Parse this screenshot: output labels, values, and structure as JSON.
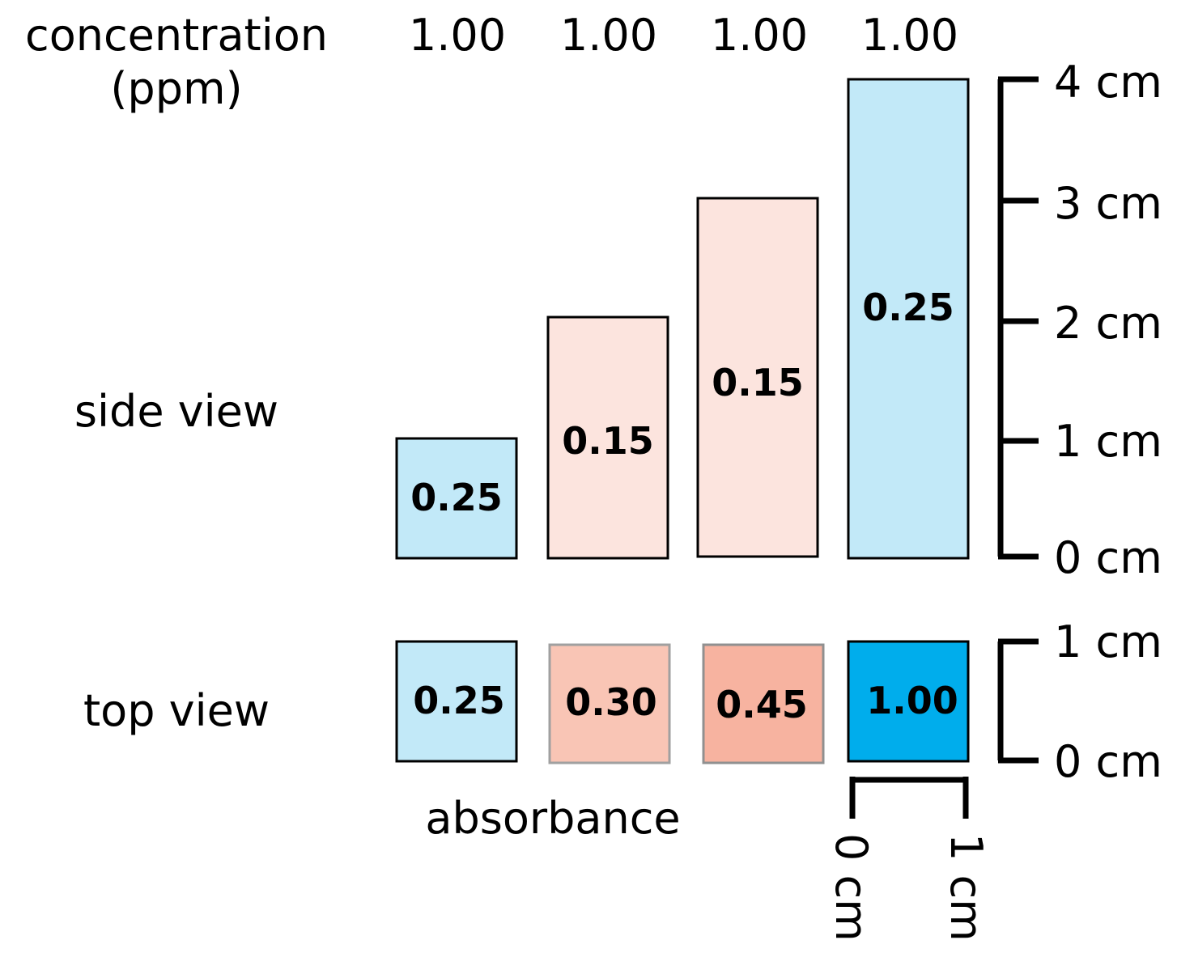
{
  "labels": {
    "concentration_line1": "concentration",
    "concentration_line2": "(ppm)",
    "side_view": "side view",
    "top_view": "top view",
    "absorbance": "absorbance"
  },
  "concentrations": [
    "1.00",
    "1.00",
    "1.00",
    "1.00"
  ],
  "side_view": {
    "heights_cm": [
      1,
      2,
      3,
      4
    ],
    "values": [
      "0.25",
      "0.15",
      "0.15",
      "0.25"
    ],
    "fills": [
      "#c2e9f8",
      "#fce4de",
      "#fce4de",
      "#c2e9f8"
    ]
  },
  "top_view": {
    "values": [
      "0.25",
      "0.30",
      "0.45",
      "1.00"
    ],
    "fills": [
      "#c2e9f8",
      "#f9c5b5",
      "#f7b3a0",
      "#00adec"
    ],
    "borders": [
      "#000000",
      "#a0a0a0",
      "#909090",
      "#000000"
    ]
  },
  "side_scale": {
    "ticks": [
      "0 cm",
      "1 cm",
      "2 cm",
      "3 cm",
      "4 cm"
    ]
  },
  "top_scale": {
    "ticks": [
      "0 cm",
      "1 cm"
    ]
  },
  "bottom_scale": {
    "ticks": [
      "0 cm",
      "1 cm"
    ]
  }
}
